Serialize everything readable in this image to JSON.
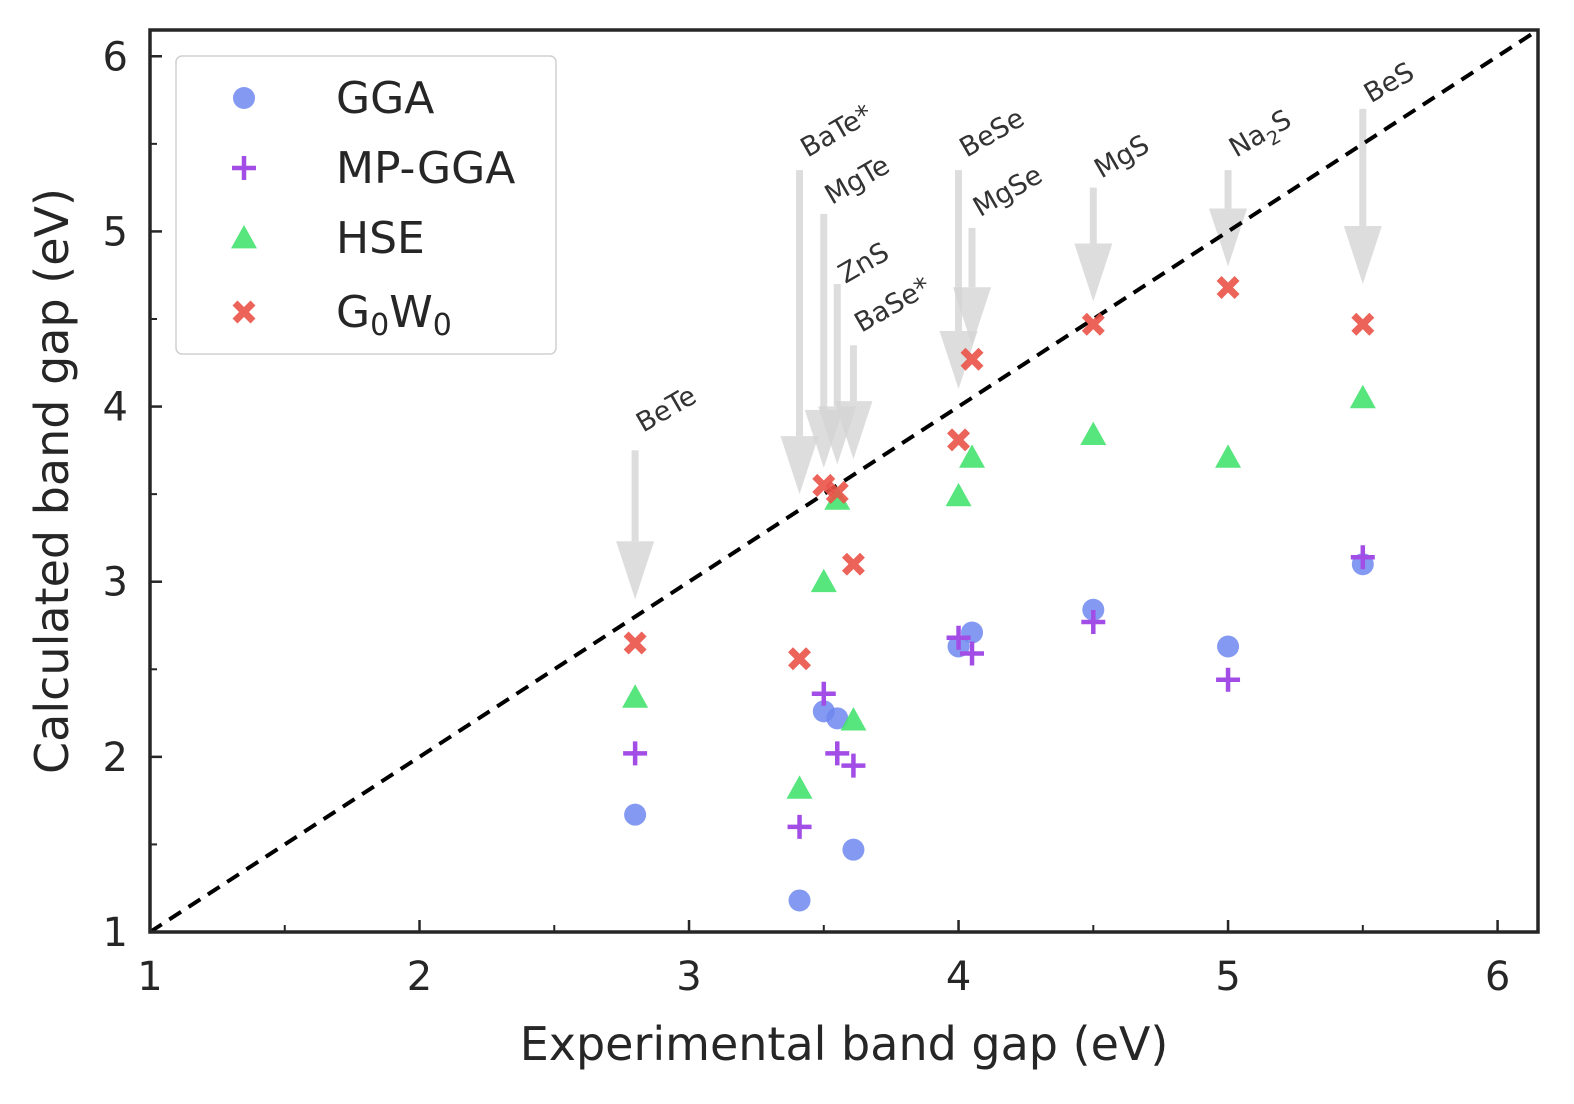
{
  "chart_data": {
    "type": "scatter",
    "xlabel": "Experimental band gap (eV)",
    "ylabel": "Calculated band gap (eV)",
    "xlim": [
      1,
      6.15
    ],
    "ylim": [
      1,
      6.15
    ],
    "xticks": [
      1,
      2,
      3,
      4,
      5,
      6
    ],
    "yticks": [
      1,
      2,
      3,
      4,
      5,
      6
    ],
    "minor_ticks": [
      1.5,
      2.5,
      3.5,
      4.5,
      5.5
    ],
    "grid": false,
    "legend_position": "top-left",
    "reference_line": "y = x (black dashed)",
    "series": [
      {
        "name": "GGA",
        "marker": "circle",
        "color": "#6f87ee",
        "points": [
          {
            "x": 2.8,
            "y": 1.67
          },
          {
            "x": 3.41,
            "y": 1.18
          },
          {
            "x": 3.5,
            "y": 2.26
          },
          {
            "x": 3.55,
            "y": 2.22
          },
          {
            "x": 3.61,
            "y": 1.47
          },
          {
            "x": 4.0,
            "y": 2.63
          },
          {
            "x": 4.05,
            "y": 2.71
          },
          {
            "x": 4.5,
            "y": 2.84
          },
          {
            "x": 5.0,
            "y": 2.63
          },
          {
            "x": 5.5,
            "y": 3.1
          }
        ]
      },
      {
        "name": "MP-GGA",
        "marker": "plus",
        "color": "#a24ee6",
        "points": [
          {
            "x": 2.8,
            "y": 2.02
          },
          {
            "x": 3.41,
            "y": 1.6
          },
          {
            "x": 3.5,
            "y": 2.36
          },
          {
            "x": 3.55,
            "y": 2.02
          },
          {
            "x": 3.61,
            "y": 1.95
          },
          {
            "x": 4.0,
            "y": 2.68
          },
          {
            "x": 4.05,
            "y": 2.59
          },
          {
            "x": 4.5,
            "y": 2.77
          },
          {
            "x": 5.0,
            "y": 2.44
          },
          {
            "x": 5.5,
            "y": 3.14
          }
        ]
      },
      {
        "name": "HSE",
        "marker": "triangle",
        "color": "#45e26f",
        "points": [
          {
            "x": 2.8,
            "y": 2.34
          },
          {
            "x": 3.41,
            "y": 1.82
          },
          {
            "x": 3.5,
            "y": 3.0
          },
          {
            "x": 3.55,
            "y": 3.47
          },
          {
            "x": 3.61,
            "y": 2.21
          },
          {
            "x": 4.0,
            "y": 3.49
          },
          {
            "x": 4.05,
            "y": 3.71
          },
          {
            "x": 4.5,
            "y": 3.84
          },
          {
            "x": 5.0,
            "y": 3.71
          },
          {
            "x": 5.5,
            "y": 4.05
          }
        ]
      },
      {
        "name_parts": [
          "G",
          "0",
          "W",
          "0"
        ],
        "marker": "x",
        "color": "#ea5248",
        "points": [
          {
            "x": 2.8,
            "y": 2.65
          },
          {
            "x": 3.41,
            "y": 2.56
          },
          {
            "x": 3.5,
            "y": 3.55
          },
          {
            "x": 3.55,
            "y": 3.51
          },
          {
            "x": 3.61,
            "y": 3.1
          },
          {
            "x": 4.0,
            "y": 3.81
          },
          {
            "x": 4.05,
            "y": 4.27
          },
          {
            "x": 4.5,
            "y": 4.47
          },
          {
            "x": 5.0,
            "y": 4.68
          },
          {
            "x": 5.5,
            "y": 4.47
          }
        ]
      }
    ],
    "annotations": [
      {
        "label": "BeTe",
        "x": 2.8,
        "y_top": 3.75,
        "y_tip": 2.9,
        "label_y": 3.85
      },
      {
        "label": "BaTe*",
        "x": 3.41,
        "y_top": 5.35,
        "y_tip": 3.5,
        "label_y": 5.42
      },
      {
        "label": "MgTe",
        "x": 3.5,
        "y_top": 5.1,
        "y_tip": 3.65,
        "label_y": 5.15
      },
      {
        "label": "ZnS",
        "x": 3.55,
        "y_top": 4.7,
        "y_tip": 3.67,
        "label_y": 4.7
      },
      {
        "label": "BaSe*",
        "x": 3.61,
        "y_top": 4.35,
        "y_tip": 3.7,
        "label_y": 4.42
      },
      {
        "label": "BeSe",
        "x": 4.0,
        "y_top": 5.35,
        "y_tip": 4.1,
        "label_y": 5.42
      },
      {
        "label": "MgSe",
        "x": 4.05,
        "y_top": 5.02,
        "y_tip": 4.35,
        "label_y": 5.08
      },
      {
        "label": "MgS",
        "x": 4.5,
        "y_top": 5.25,
        "y_tip": 4.6,
        "label_y": 5.3
      },
      {
        "label_parts": [
          "Na",
          "2",
          "S"
        ],
        "x": 5.0,
        "y_top": 5.35,
        "y_tip": 4.8,
        "label_y": 5.42
      },
      {
        "label": "BeS",
        "x": 5.5,
        "y_top": 5.7,
        "y_tip": 4.7,
        "label_y": 5.73
      }
    ]
  }
}
